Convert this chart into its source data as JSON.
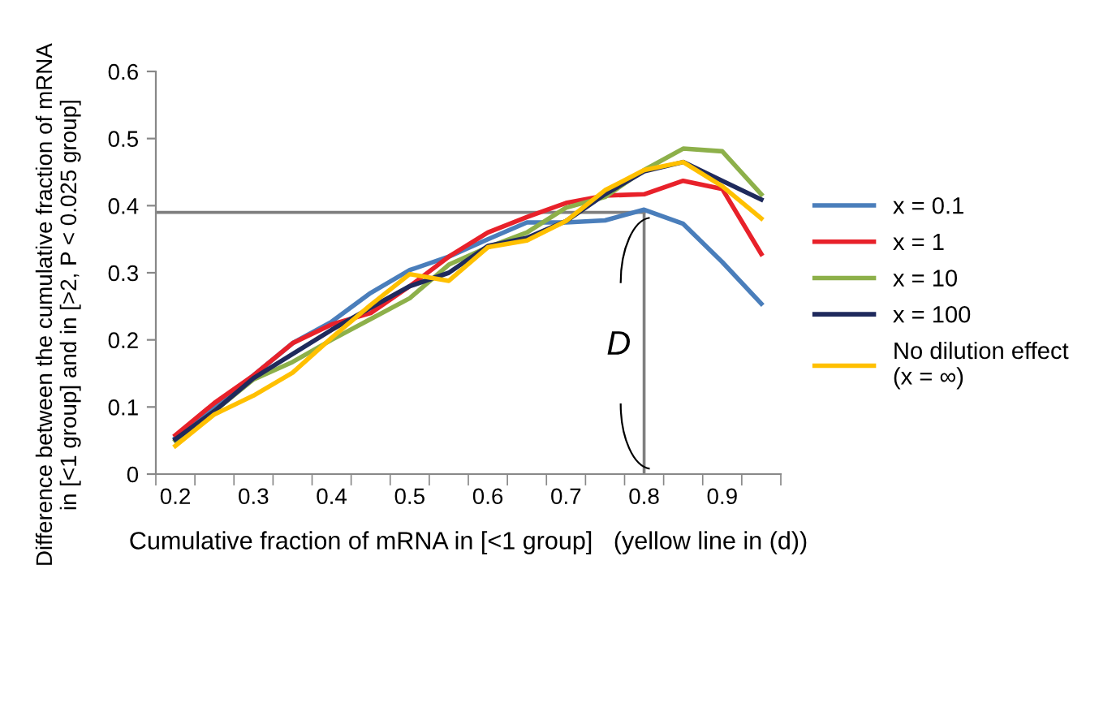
{
  "chart_data": {
    "type": "line",
    "xlabel": "Cumulative fraction of mRNA in [<1 group]   (yellow line in (d))",
    "ylabel": "Difference between the cumulative fraction of mRNA\nin [<1 group] and in [>2, P < 0.025 group]",
    "categories": [
      "0.2",
      null,
      "0.3",
      null,
      "0.4",
      null,
      "0.5",
      null,
      "0.6",
      null,
      "0.7",
      null,
      "0.8",
      null,
      "0.9",
      null
    ],
    "series": [
      {
        "name": "x = 0.1",
        "color": "#4a7ebb",
        "values": [
          0.054,
          0.1,
          0.147,
          0.195,
          0.227,
          0.27,
          0.304,
          0.324,
          0.35,
          0.375,
          0.375,
          0.378,
          0.394,
          0.373,
          0.316,
          0.254
        ]
      },
      {
        "name": "x = 1",
        "color": "#e8212a",
        "values": [
          0.058,
          0.106,
          0.147,
          0.195,
          0.223,
          0.24,
          0.28,
          0.324,
          0.36,
          0.383,
          0.404,
          0.415,
          0.417,
          0.437,
          0.425,
          0.328
        ]
      },
      {
        "name": "x = 10",
        "color": "#8db04a",
        "values": [
          0.05,
          0.094,
          0.141,
          0.167,
          0.2,
          0.231,
          0.262,
          0.312,
          0.338,
          0.36,
          0.397,
          0.413,
          0.453,
          0.485,
          0.481,
          0.417
        ]
      },
      {
        "name": "x = 100",
        "color": "#1f2a5c",
        "values": [
          0.052,
          0.094,
          0.143,
          0.179,
          0.215,
          0.248,
          0.28,
          0.3,
          0.34,
          0.352,
          0.377,
          0.417,
          0.451,
          0.465,
          0.437,
          0.409
        ]
      },
      {
        "name": "No dilution effect\n(x = ∞)",
        "color": "#ffc000",
        "values": [
          0.042,
          0.089,
          0.117,
          0.151,
          0.203,
          0.252,
          0.298,
          0.288,
          0.338,
          0.348,
          0.377,
          0.423,
          0.453,
          0.465,
          0.429,
          0.381
        ]
      }
    ],
    "ylim": [
      0,
      0.6
    ],
    "yticks": [
      0,
      0.1,
      0.2,
      0.3,
      0.4,
      0.5,
      0.6
    ],
    "ref_lines": [
      {
        "axis": "y",
        "value": 0.39,
        "color": "#7f7f7f"
      },
      {
        "axis": "x",
        "value": "0.8",
        "color": "#7f7f7f"
      }
    ],
    "annotations": [
      "D"
    ],
    "grid": false,
    "legend": "right",
    "marker": "none",
    "line_style": "solid"
  }
}
